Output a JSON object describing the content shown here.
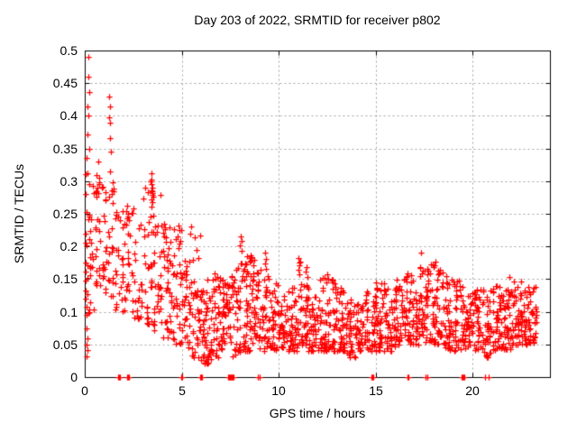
{
  "chart_data": {
    "type": "scatter",
    "title": "Day 203 of 2022, SRMTID for receiver p802",
    "xlabel": "GPS time / hours",
    "ylabel": "SRMTID / TECUs",
    "xlim": [
      0,
      24
    ],
    "ylim": [
      0,
      0.5
    ],
    "xticks": {
      "values": [
        0,
        5,
        10,
        15,
        20
      ],
      "labels": [
        "0",
        "5",
        "10",
        "15",
        "20"
      ]
    },
    "yticks": {
      "values": [
        0,
        0.05,
        0.1,
        0.15,
        0.2,
        0.25,
        0.3,
        0.35,
        0.4,
        0.45,
        0.5
      ],
      "labels": [
        "0",
        "0.05",
        "0.1",
        "0.15",
        "0.2",
        "0.25",
        "0.3",
        "0.35",
        "0.4",
        "0.45",
        "0.5"
      ]
    },
    "grid": {
      "show": true,
      "style": "dotted",
      "color": "#a0a0a0"
    },
    "frame_color": "#000000",
    "marker": {
      "shape": "plus",
      "color": "#ff0000",
      "size": 7
    },
    "data_end_hour": 23.3,
    "seed": 2022203,
    "bins": [
      [
        0.0,
        0.5,
        38,
        0.09,
        0.21,
        0.33
      ],
      [
        0.5,
        1.0,
        30,
        0.14,
        0.22,
        0.31
      ],
      [
        1.0,
        1.5,
        32,
        0.12,
        0.2,
        0.31
      ],
      [
        1.5,
        2.0,
        26,
        0.1,
        0.17,
        0.26
      ],
      [
        2.0,
        2.5,
        26,
        0.1,
        0.165,
        0.26
      ],
      [
        2.5,
        3.0,
        22,
        0.09,
        0.15,
        0.25
      ],
      [
        3.0,
        3.5,
        30,
        0.08,
        0.16,
        0.3
      ],
      [
        3.5,
        4.0,
        34,
        0.07,
        0.15,
        0.28
      ],
      [
        4.0,
        4.5,
        34,
        0.06,
        0.13,
        0.235
      ],
      [
        4.5,
        5.0,
        32,
        0.05,
        0.115,
        0.23
      ],
      [
        5.0,
        5.5,
        34,
        0.04,
        0.1,
        0.18
      ],
      [
        5.5,
        6.0,
        36,
        0.03,
        0.095,
        0.22
      ],
      [
        6.0,
        6.5,
        40,
        0.02,
        0.08,
        0.15
      ],
      [
        6.5,
        7.0,
        40,
        0.03,
        0.085,
        0.16
      ],
      [
        7.0,
        7.5,
        40,
        0.04,
        0.09,
        0.15
      ],
      [
        7.5,
        8.0,
        40,
        0.03,
        0.09,
        0.17
      ],
      [
        8.0,
        8.5,
        42,
        0.04,
        0.095,
        0.21
      ],
      [
        8.5,
        9.0,
        42,
        0.05,
        0.1,
        0.185
      ],
      [
        9.0,
        9.5,
        40,
        0.04,
        0.085,
        0.185
      ],
      [
        9.5,
        10.0,
        40,
        0.04,
        0.085,
        0.15
      ],
      [
        10.0,
        10.5,
        40,
        0.04,
        0.08,
        0.13
      ],
      [
        10.5,
        11.0,
        40,
        0.04,
        0.08,
        0.14
      ],
      [
        11.0,
        11.5,
        42,
        0.05,
        0.09,
        0.175
      ],
      [
        11.5,
        12.0,
        40,
        0.04,
        0.08,
        0.14
      ],
      [
        12.0,
        12.5,
        40,
        0.04,
        0.08,
        0.155
      ],
      [
        12.5,
        13.0,
        40,
        0.04,
        0.08,
        0.15
      ],
      [
        13.0,
        13.5,
        40,
        0.04,
        0.075,
        0.14
      ],
      [
        13.5,
        14.0,
        38,
        0.03,
        0.07,
        0.12
      ],
      [
        14.0,
        14.5,
        38,
        0.04,
        0.07,
        0.12
      ],
      [
        14.5,
        15.0,
        38,
        0.04,
        0.075,
        0.135
      ],
      [
        15.0,
        15.5,
        40,
        0.04,
        0.08,
        0.145
      ],
      [
        15.5,
        16.0,
        40,
        0.04,
        0.08,
        0.14
      ],
      [
        16.0,
        16.5,
        40,
        0.05,
        0.09,
        0.15
      ],
      [
        16.5,
        17.0,
        40,
        0.05,
        0.095,
        0.16
      ],
      [
        17.0,
        17.5,
        42,
        0.05,
        0.105,
        0.17
      ],
      [
        17.5,
        18.0,
        42,
        0.05,
        0.11,
        0.175
      ],
      [
        18.0,
        18.5,
        42,
        0.05,
        0.1,
        0.17
      ],
      [
        18.5,
        19.0,
        40,
        0.04,
        0.09,
        0.155
      ],
      [
        19.0,
        19.5,
        40,
        0.04,
        0.085,
        0.15
      ],
      [
        19.5,
        20.0,
        40,
        0.04,
        0.08,
        0.13
      ],
      [
        20.0,
        20.5,
        40,
        0.04,
        0.08,
        0.135
      ],
      [
        20.5,
        21.0,
        40,
        0.03,
        0.08,
        0.14
      ],
      [
        21.0,
        21.5,
        40,
        0.04,
        0.08,
        0.14
      ],
      [
        21.5,
        22.0,
        40,
        0.04,
        0.08,
        0.135
      ],
      [
        22.0,
        22.5,
        42,
        0.05,
        0.085,
        0.15
      ],
      [
        22.5,
        23.0,
        42,
        0.05,
        0.09,
        0.145
      ],
      [
        23.0,
        23.3,
        24,
        0.05,
        0.09,
        0.14
      ]
    ],
    "outliers": [
      [
        0.18,
        0.49
      ],
      [
        0.2,
        0.46
      ],
      [
        0.22,
        0.437
      ],
      [
        0.16,
        0.415
      ],
      [
        0.2,
        0.4
      ],
      [
        0.13,
        0.372
      ],
      [
        0.24,
        0.35
      ],
      [
        0.1,
        0.335
      ],
      [
        1.25,
        0.43
      ],
      [
        1.3,
        0.414
      ],
      [
        1.26,
        0.398
      ],
      [
        1.32,
        0.39
      ],
      [
        1.28,
        0.366
      ],
      [
        1.33,
        0.345
      ],
      [
        1.3,
        0.315
      ],
      [
        0.7,
        0.33
      ],
      [
        0.76,
        0.305
      ],
      [
        0.65,
        0.29
      ],
      [
        0.08,
        0.095
      ],
      [
        0.1,
        0.075
      ],
      [
        0.13,
        0.06
      ],
      [
        0.07,
        0.05
      ],
      [
        0.16,
        0.042
      ],
      [
        0.1,
        0.032
      ],
      [
        2.18,
        0.262
      ],
      [
        2.24,
        0.25
      ],
      [
        2.3,
        0.24
      ],
      [
        2.14,
        0.233
      ],
      [
        2.5,
        0.258
      ],
      [
        3.42,
        0.312
      ],
      [
        3.46,
        0.302
      ],
      [
        3.44,
        0.295
      ],
      [
        3.5,
        0.29
      ],
      [
        3.45,
        0.286
      ],
      [
        3.49,
        0.282
      ],
      [
        3.47,
        0.279
      ],
      [
        3.52,
        0.276
      ],
      [
        3.43,
        0.272
      ],
      [
        3.5,
        0.268
      ],
      [
        3.46,
        0.261
      ],
      [
        3.41,
        0.246
      ],
      [
        4.08,
        0.235
      ],
      [
        4.14,
        0.227
      ],
      [
        4.05,
        0.221
      ],
      [
        4.2,
        0.214
      ],
      [
        4.85,
        0.232
      ],
      [
        4.8,
        0.215
      ],
      [
        4.9,
        0.205
      ],
      [
        4.83,
        0.197
      ],
      [
        5.5,
        0.231
      ],
      [
        5.46,
        0.22
      ],
      [
        6.25,
        0.025
      ],
      [
        6.31,
        0.031
      ],
      [
        6.36,
        0.022
      ],
      [
        6.41,
        0.035
      ],
      [
        6.3,
        0.045
      ],
      [
        6.46,
        0.04
      ],
      [
        6.2,
        0.05
      ],
      [
        6.5,
        0.028
      ],
      [
        8.04,
        0.216
      ],
      [
        8.1,
        0.209
      ],
      [
        8.0,
        0.201
      ],
      [
        8.08,
        0.194
      ],
      [
        8.55,
        0.187
      ],
      [
        8.6,
        0.184
      ],
      [
        8.58,
        0.182
      ],
      [
        8.62,
        0.18
      ],
      [
        8.57,
        0.178
      ],
      [
        8.7,
        0.171
      ],
      [
        9.28,
        0.19
      ],
      [
        9.34,
        0.181
      ],
      [
        9.31,
        0.174
      ],
      [
        11.04,
        0.182
      ],
      [
        11.1,
        0.177
      ],
      [
        11.07,
        0.171
      ],
      [
        11.0,
        0.164
      ],
      [
        12.5,
        0.158
      ],
      [
        12.55,
        0.15
      ],
      [
        15.02,
        0.145
      ],
      [
        15.06,
        0.137
      ],
      [
        17.35,
        0.19
      ],
      [
        18.1,
        0.177
      ],
      [
        18.04,
        0.171
      ],
      [
        17.3,
        0.167
      ],
      [
        17.7,
        0.163
      ],
      [
        20.4,
        0.134
      ],
      [
        21.2,
        0.139
      ],
      [
        21.9,
        0.154
      ],
      [
        22.5,
        0.147
      ],
      [
        22.95,
        0.13
      ]
    ],
    "zero_clusters": [
      [
        1.75,
        8
      ],
      [
        2.25,
        8
      ],
      [
        5.0,
        3
      ],
      [
        6.0,
        8
      ],
      [
        7.42,
        5
      ],
      [
        7.6,
        8
      ],
      [
        8.95,
        3
      ],
      [
        14.8,
        8
      ],
      [
        16.65,
        8
      ],
      [
        17.62,
        2
      ],
      [
        19.5,
        8
      ],
      [
        20.7,
        2
      ],
      [
        20.8,
        2
      ]
    ]
  }
}
